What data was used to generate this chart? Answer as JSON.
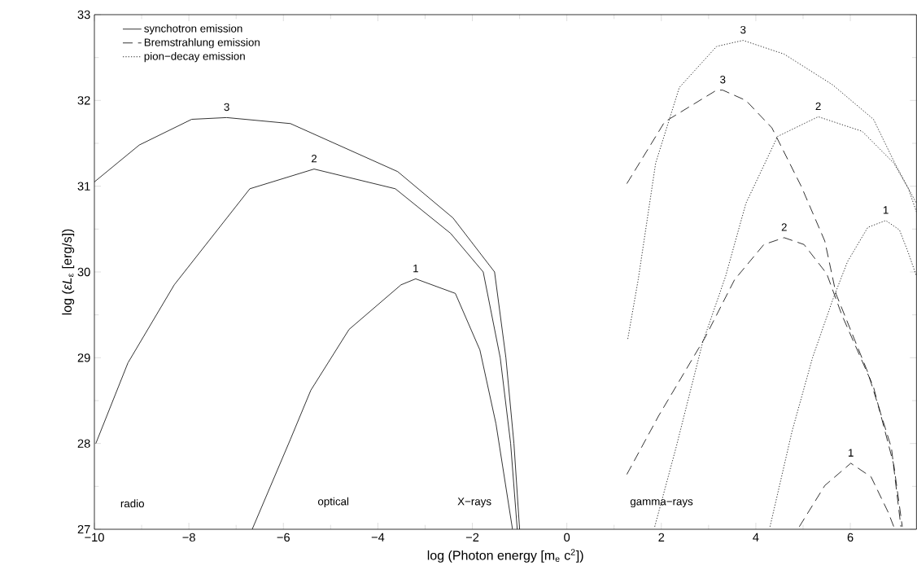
{
  "chart_data": {
    "type": "line",
    "xlabel": "log (Photon energy [m$_{e}$ c$^{2}$])",
    "ylabel": "log (*εL*$_{ε}$ [erg/s])",
    "xlim": [
      -10,
      7.4
    ],
    "ylim": [
      27,
      33
    ],
    "xticks": [
      {
        "value": -10,
        "label": "−10"
      },
      {
        "value": -8,
        "label": "−8"
      },
      {
        "value": -6,
        "label": "−6"
      },
      {
        "value": -4,
        "label": "−4"
      },
      {
        "value": -2,
        "label": "−2"
      },
      0,
      2,
      4,
      6
    ],
    "yticks": [
      27,
      28,
      29,
      30,
      31,
      32,
      33
    ],
    "legend": "top left",
    "series": [
      {
        "name": "synchotron emission",
        "color": "#000000",
        "line_style": "solid",
        "x": [
          -10,
          -9.05,
          -7.94,
          -7.2,
          -5.85,
          -3.58,
          -2.41,
          -1.53,
          -1.29,
          -1.12,
          -1.0
        ],
        "values": [
          31.05,
          31.48,
          31.78,
          31.8,
          31.73,
          31.17,
          30.63,
          30.0,
          29.0,
          28.0,
          27.0
        ]
      },
      {
        "name": "Bremstrahlung emission",
        "color": "#000000",
        "line_style": "dashed",
        "x": [
          1.27,
          2.07,
          3.17,
          3.3,
          3.79,
          4.34,
          4.96,
          5.46,
          5.7,
          6.37,
          6.87,
          7.07
        ],
        "values": [
          31.03,
          31.75,
          32.12,
          32.12,
          32.0,
          31.68,
          31.0,
          30.36,
          29.74,
          28.83,
          27.95,
          27.03
        ]
      },
      {
        "name": "pion−decay emission",
        "color": "#000000",
        "line_style": "dotted",
        "x": [
          1.29,
          1.51,
          1.88,
          2.38,
          3.17,
          3.73,
          4.6,
          5.63,
          6.49,
          6.94,
          7.4
        ],
        "values": [
          29.22,
          29.91,
          31.27,
          32.15,
          32.63,
          32.7,
          32.54,
          32.18,
          31.78,
          31.27,
          30.8
        ]
      },
      {
        "color": "#000000",
        "line_style": "solid",
        "x": [
          -9.97,
          -9.29,
          -8.31,
          -6.71,
          -5.35,
          -3.63,
          -2.46,
          -1.77,
          -1.41,
          -1.19,
          -1.05
        ],
        "values": [
          28.0,
          28.94,
          29.85,
          30.97,
          31.2,
          30.97,
          30.45,
          30.0,
          29.0,
          28.0,
          27.0
        ]
      },
      {
        "color": "#000000",
        "line_style": "solid",
        "x": [
          -6.66,
          -5.85,
          -5.42,
          -4.61,
          -3.51,
          -3.2,
          -2.36,
          -1.84,
          -1.5,
          -1.15
        ],
        "values": [
          27.0,
          28.05,
          28.62,
          29.33,
          29.85,
          29.92,
          29.75,
          29.09,
          28.23,
          27.0
        ]
      },
      {
        "color": "#000000",
        "line_style": "dashed",
        "x": [
          1.27,
          1.94,
          2.93,
          3.55,
          4.17,
          4.6,
          5.02,
          5.5,
          5.82,
          6.49,
          6.92,
          7.1
        ],
        "values": [
          27.64,
          28.32,
          29.24,
          29.91,
          30.32,
          30.4,
          30.32,
          29.98,
          29.5,
          28.66,
          27.75,
          27.03
        ]
      },
      {
        "color": "#000000",
        "line_style": "dashed",
        "x": [
          4.92,
          5.46,
          6.01,
          6.44,
          6.8,
          6.92
        ],
        "values": [
          27.03,
          27.51,
          27.77,
          27.61,
          27.2,
          27.03
        ]
      },
      {
        "color": "#000000",
        "line_style": "dotted",
        "x": [
          1.86,
          2.31,
          2.87,
          3.36,
          3.79,
          4.46,
          5.32,
          6.25,
          6.92,
          7.23,
          7.4
        ],
        "values": [
          27.03,
          27.95,
          29.17,
          29.95,
          30.8,
          31.58,
          31.81,
          31.64,
          31.27,
          30.97,
          30.7
        ]
      },
      {
        "color": "#000000",
        "line_style": "dotted",
        "x": [
          4.3,
          4.77,
          5.2,
          5.63,
          5.94,
          6.37,
          6.75,
          7.04,
          7.23,
          7.4
        ],
        "values": [
          27.03,
          28.15,
          29.0,
          29.68,
          30.12,
          30.52,
          30.6,
          30.49,
          30.22,
          29.95
        ]
      }
    ],
    "annotations": [
      {
        "text": "3",
        "x": -7.2,
        "y": 31.8
      },
      {
        "text": "2",
        "x": -5.35,
        "y": 31.2
      },
      {
        "text": "1",
        "x": -3.2,
        "y": 29.92
      },
      {
        "text": "3",
        "x": 3.3,
        "y": 32.12
      },
      {
        "text": "3",
        "x": 3.73,
        "y": 32.7
      },
      {
        "text": "2",
        "x": 5.32,
        "y": 31.81
      },
      {
        "text": "2",
        "x": 4.6,
        "y": 30.4
      },
      {
        "text": "1",
        "x": 6.75,
        "y": 30.6
      },
      {
        "text": "1",
        "x": 6.01,
        "y": 27.77
      },
      "radio",
      "optical",
      "X−rays",
      "gamma−rays"
    ]
  }
}
